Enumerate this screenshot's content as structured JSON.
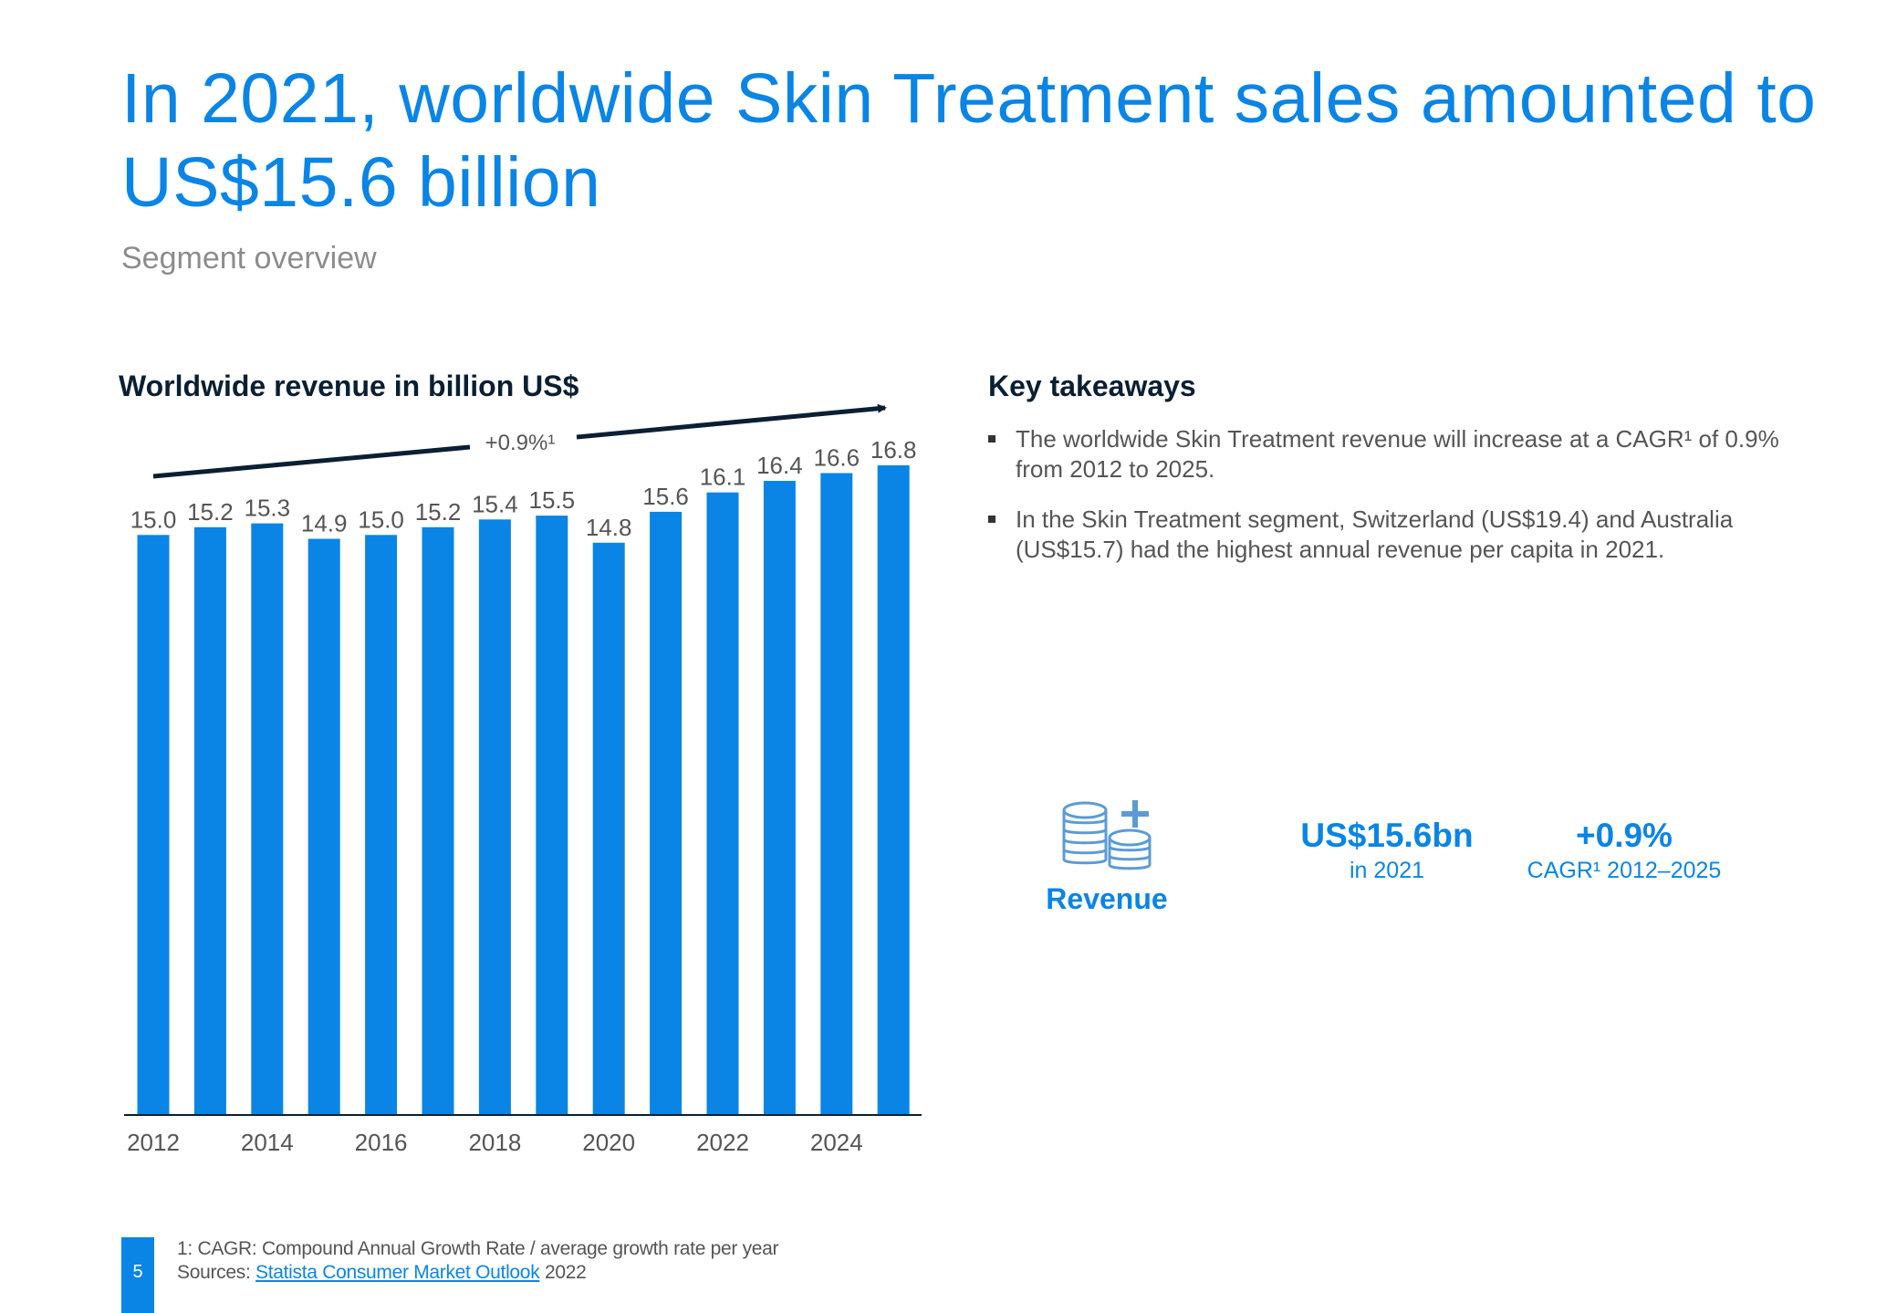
{
  "header": {
    "title": "In 2021, worldwide Skin Treatment sales amounted to US$15.6 billion",
    "subtitle": "Segment overview"
  },
  "chart_heading": "Worldwide revenue in billion US$",
  "chart_data": {
    "type": "bar",
    "title": "Worldwide revenue in billion US$",
    "categories": [
      "2012",
      "2013",
      "2014",
      "2015",
      "2016",
      "2017",
      "2018",
      "2019",
      "2020",
      "2021",
      "2022",
      "2023",
      "2024",
      "2025"
    ],
    "values": [
      15.0,
      15.2,
      15.3,
      14.9,
      15.0,
      15.2,
      15.4,
      15.5,
      14.8,
      15.6,
      16.1,
      16.4,
      16.6,
      16.8
    ],
    "value_labels": [
      "15.0",
      "15.2",
      "15.3",
      "14.9",
      "15.0",
      "15.2",
      "15.4",
      "15.5",
      "14.8",
      "15.6",
      "16.1",
      "16.4",
      "16.6",
      "16.8"
    ],
    "tick_labels": [
      "2012",
      "2014",
      "2016",
      "2018",
      "2020",
      "2022",
      "2024"
    ],
    "trend_label": "+0.9%¹",
    "ylim": [
      0,
      16.8
    ],
    "xlabel": "",
    "ylabel": "",
    "color": "#0a85e6"
  },
  "key_takeaways": {
    "heading": "Key takeaways",
    "items": [
      "The worldwide Skin Treatment revenue will increase at a CAGR¹ of 0.9% from 2012 to 2025.",
      "In the Skin Treatment segment, Switzerland (US$19.4) and Australia (US$15.7) had the highest annual revenue per capita in 2021."
    ]
  },
  "revenue": {
    "icon": "coins-stack-plus-icon",
    "label": "Revenue"
  },
  "kpis": [
    {
      "value": "US$15.6bn",
      "sub": "in 2021"
    },
    {
      "value": "+0.9%",
      "sub": "CAGR¹ 2012–2025"
    }
  ],
  "footer": {
    "note": "1: CAGR: Compound Annual Growth Rate / average growth rate per year",
    "sources_prefix": "Sources:",
    "source_link": "Statista Consumer Market Outlook",
    "source_year": "2022",
    "page_number": "5"
  },
  "colors": {
    "accent": "#0a85e6",
    "dark": "#0b1f33"
  }
}
